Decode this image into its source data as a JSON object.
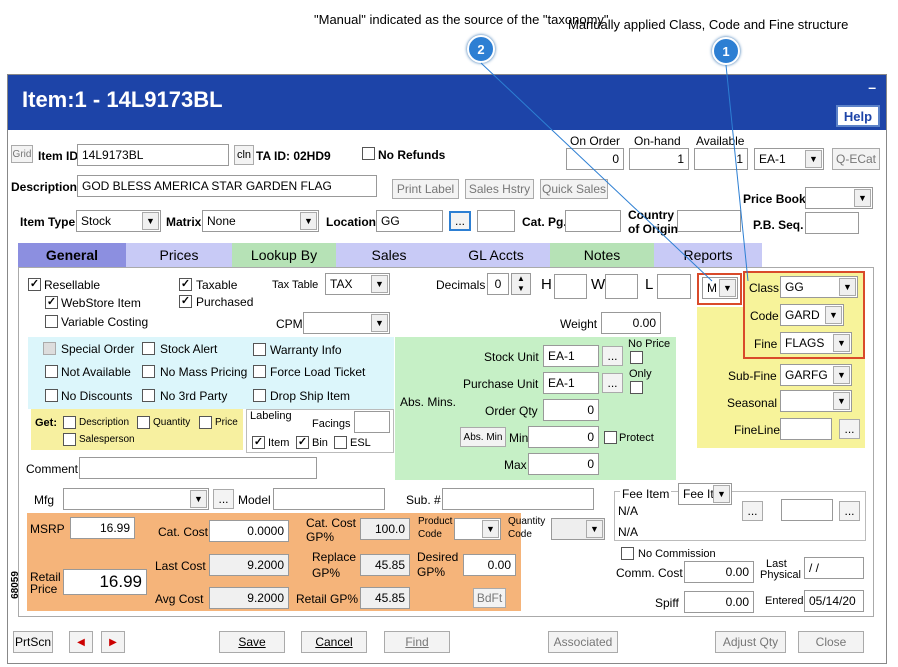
{
  "annotations": {
    "a2": "\"Manual\" indicated as the source of the \"taxonomy\"",
    "a1": "Manually applied Class, Code and Fine structure",
    "n1": "1",
    "n2": "2"
  },
  "window": {
    "title": "Item:1 - 14L9173BL",
    "minimize": "–",
    "help": "Help",
    "side_code": "68059"
  },
  "header": {
    "grid": "Grid",
    "item_id_label": "Item ID",
    "item_id": "14L9173BL",
    "cln": "cln",
    "ta_id": "TA ID: 02HD9",
    "no_refunds": "No Refunds",
    "on_order_label": "On Order",
    "on_hand_label": "On-hand",
    "available_label": "Available",
    "on_order": "0",
    "on_hand": "1",
    "available": "1",
    "unit": "EA-1",
    "qecat": "Q-ECat",
    "description_label": "Description",
    "description": "GOD BLESS AMERICA STAR GARDEN FLAG",
    "print_label": "Print Label",
    "sales_hstry": "Sales Hstry",
    "quick_sales": "Quick Sales",
    "price_book": "Price Book",
    "item_type_label": "Item Type",
    "item_type": "Stock",
    "matrix_label": "Matrix",
    "matrix": "None",
    "location_label": "Location",
    "location": "GG",
    "ellipsis": "...",
    "cat_pg": "Cat. Pg.",
    "country_label": "Country",
    "country_label2": "of Origin",
    "pb_seq": "P.B. Seq."
  },
  "tabs": [
    {
      "label": "General",
      "color": "#8c8fe0"
    },
    {
      "label": "Prices",
      "color": "#c8caf6"
    },
    {
      "label": "Lookup By",
      "color": "#b6e2b6"
    },
    {
      "label": "Sales",
      "color": "#c8caf6"
    },
    {
      "label": "GL Accts",
      "color": "#c8caf6"
    },
    {
      "label": "Notes",
      "color": "#b6e2b6"
    },
    {
      "label": "Reports",
      "color": "#c8caf6"
    }
  ],
  "general": {
    "resellable": "Resellable",
    "webstore": "WebStore Item",
    "variable_costing": "Variable Costing",
    "taxable": "Taxable",
    "purchased": "Purchased",
    "tax_table_label": "Tax Table",
    "tax_table": "TAX",
    "cpm": "CPM",
    "decimals": "Decimals",
    "decimals_val": "0",
    "h": "H",
    "w": "W",
    "l": "L",
    "m": "M",
    "weight": "Weight",
    "weight_val": "0.00",
    "special_order": "Special Order",
    "stock_alert": "Stock Alert",
    "warranty_info": "Warranty Info",
    "not_available": "Not Available",
    "no_mass_pricing": "No Mass Pricing",
    "force_load_ticket": "Force Load Ticket",
    "no_discounts": "No Discounts",
    "no_3rd_party": "No 3rd Party",
    "drop_ship": "Drop Ship Item",
    "get": "Get:",
    "g_description": "Description",
    "g_quantity": "Quantity",
    "g_price": "Price",
    "g_salesperson": "Salesperson",
    "labeling": "Labeling",
    "facings": "Facings",
    "l_item": "Item",
    "l_bin": "Bin",
    "l_esl": "ESL",
    "stock_unit": "Stock Unit",
    "stock_unit_val": "EA-1",
    "purchase_unit": "Purchase Unit",
    "purchase_unit_val": "EA-1",
    "no_price": "No Price",
    "only": "Only",
    "abs_mins": "Abs. Mins.",
    "order_qty": "Order Qty",
    "order_qty_val": "0",
    "abs_min_btn": "Abs. Min",
    "min": "Min",
    "min_val": "0",
    "protect": "Protect",
    "max": "Max",
    "max_val": "0",
    "class_label": "Class",
    "class_val": "GG",
    "code_label": "Code",
    "code_val": "GARD",
    "fine_label": "Fine",
    "fine_val": "FLAGS",
    "subfine_label": "Sub-Fine",
    "subfine_val": "GARFG",
    "seasonal_label": "Seasonal",
    "fineline_label": "FineLine",
    "comment": "Comment",
    "mfg": "Mfg",
    "model": "Model",
    "sub": "Sub. #",
    "fee_item": "Fee Item",
    "fee_sel": "Fee It",
    "na1": "N/A",
    "na2": "N/A",
    "product_code": "Product",
    "product_code2": "Code",
    "quantity_code": "Quantity",
    "quantity_code2": "Code",
    "msrp": "MSRP",
    "msrp_val": "16.99",
    "cat_cost": "Cat. Cost",
    "cat_cost_val": "0.0000",
    "cat_cost_gp": "Cat. Cost",
    "cat_cost_gp2": "GP%",
    "cat_cost_gp_val": "100.0",
    "retail_price": "Retail",
    "retail_price2": "Price",
    "retail_val": "16.99",
    "last_cost": "Last Cost",
    "last_cost_val": "9.2000",
    "replace_gp": "Replace",
    "replace_gp2": "GP%",
    "replace_gp_val": "45.85",
    "desired_gp": "Desired",
    "desired_gp2": "GP%",
    "desired_gp_val": "0.00",
    "avg_cost": "Avg Cost",
    "avg_cost_val": "9.2000",
    "retail_gp": "Retail GP%",
    "retail_gp_val": "45.85",
    "bdft": "BdFt",
    "no_commission": "No Commission",
    "comm_cost": "Comm. Cost",
    "comm_cost_val": "0.00",
    "last_physical": "Last",
    "last_physical2": "Physical",
    "last_physical_val": "/ /",
    "spiff": "Spiff",
    "spiff_val": "0.00",
    "entered": "Entered",
    "entered_val": "05/14/20"
  },
  "footer": {
    "prtscn": "PrtScn",
    "prev": "◀",
    "next": "▶",
    "save": "Save",
    "cancel": "Cancel",
    "find": "Find",
    "associated": "Associated",
    "adjust_qty": "Adjust Qty",
    "close": "Close"
  }
}
